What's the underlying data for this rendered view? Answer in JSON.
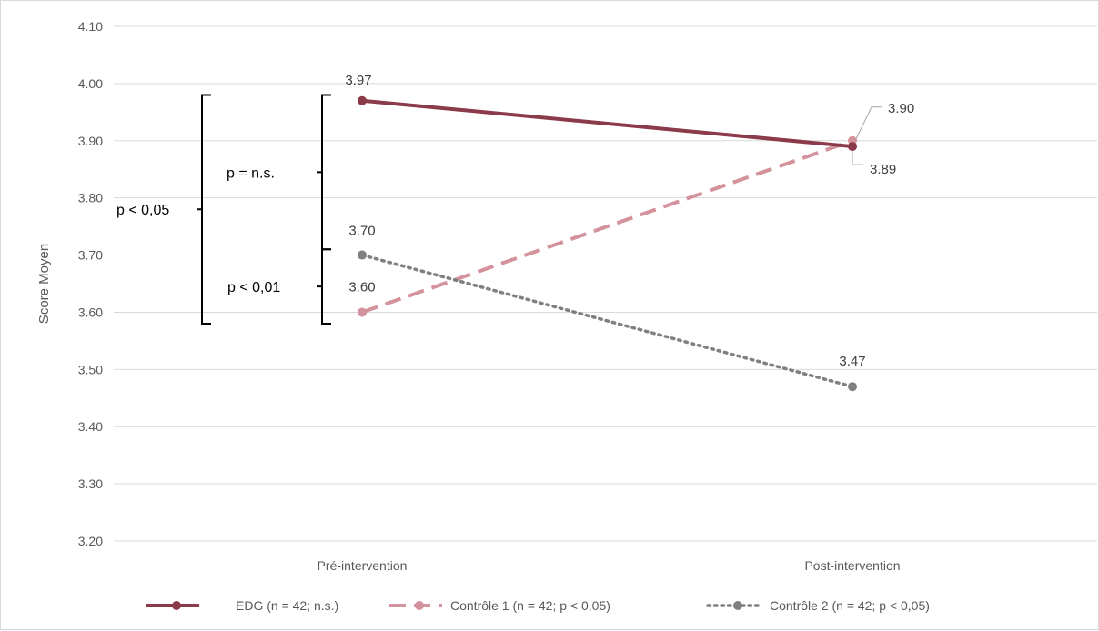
{
  "chart_data": {
    "type": "line",
    "title": "",
    "xlabel": "",
    "ylabel": "Score Moyen",
    "categories": [
      "Pré-intervention",
      "Post-intervention"
    ],
    "ylim": [
      3.2,
      4.1
    ],
    "yticks": [
      "4.10",
      "4.00",
      "3.90",
      "3.80",
      "3.70",
      "3.60",
      "3.50",
      "3.40",
      "3.30",
      "3.20"
    ],
    "grid": true,
    "legend_position": "bottom",
    "series": [
      {
        "name": "EDG (n = 42; n.s.)",
        "values": [
          3.97,
          3.89
        ],
        "labels": [
          "3.97",
          "3.89"
        ],
        "color": "#8b3a4a",
        "style": "solid"
      },
      {
        "name": "Contrôle 1 (n = 42; p < 0,05)",
        "values": [
          3.6,
          3.9
        ],
        "labels": [
          "3.60",
          "3.90"
        ],
        "color": "#d4939c",
        "style": "dashed"
      },
      {
        "name": "Contrôle 2 (n = 42; p < 0,05)",
        "values": [
          3.7,
          3.47
        ],
        "labels": [
          "3.70",
          "3.47"
        ],
        "color": "#808080",
        "style": "dotted"
      }
    ],
    "annotations": [
      {
        "text": "p < 0,05",
        "from": 3.58,
        "to": 3.98
      },
      {
        "text": "p = n.s.",
        "from": 3.71,
        "to": 3.98
      },
      {
        "text": "p < 0,01",
        "from": 3.58,
        "to": 3.71
      }
    ]
  }
}
